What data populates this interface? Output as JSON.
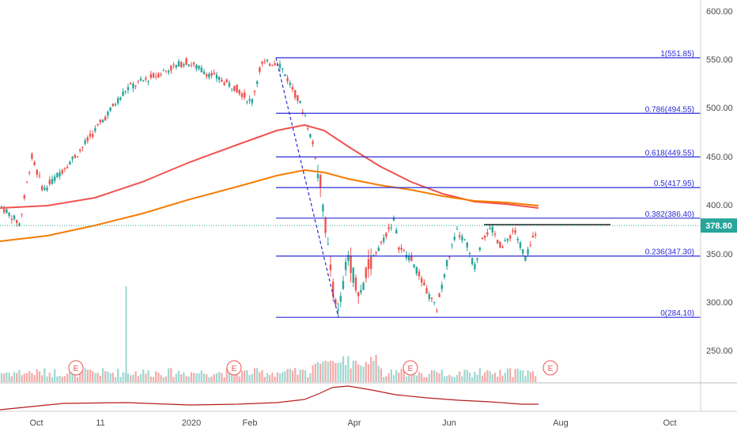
{
  "chart_data": {
    "type": "line",
    "title": "",
    "xlabel": "",
    "ylabel": "",
    "ylim": [
      220,
      610
    ],
    "y_ticks": [
      "600.00",
      "550.00",
      "500.00",
      "450.00",
      "400.00",
      "350.00",
      "300.00",
      "250.00"
    ],
    "y_tick_values": [
      600,
      550,
      500,
      450,
      400,
      350,
      300,
      250
    ],
    "x_ticks": [
      "Oct",
      "11",
      "2020",
      "Feb",
      "Apr",
      "Jun",
      "Aug",
      "Oct"
    ],
    "current_price": "378.80",
    "current_price_value": 378.8,
    "grid": false,
    "fib_levels": [
      {
        "label": "1(551.85)",
        "value": 551.85
      },
      {
        "label": "0.786(494.55)",
        "value": 494.55
      },
      {
        "label": "0.618(449.55)",
        "value": 449.55
      },
      {
        "label": "0.5(417.95)",
        "value": 417.95
      },
      {
        "label": "0.382(386.40)",
        "value": 386.4
      },
      {
        "label": "0.236(347.30)",
        "value": 347.3
      },
      {
        "label": "0(284.10)",
        "value": 284.1
      }
    ],
    "earnings_marker": "E",
    "colors": {
      "up": "#26a69a",
      "down": "#ef5350",
      "fib": "#2b2bd6",
      "ma_red": "#ef5350",
      "ma_orange": "#f57c00",
      "price_line": "#26a69a",
      "price_label_bg": "#26a69a",
      "indicator": "#b71c1c"
    }
  }
}
